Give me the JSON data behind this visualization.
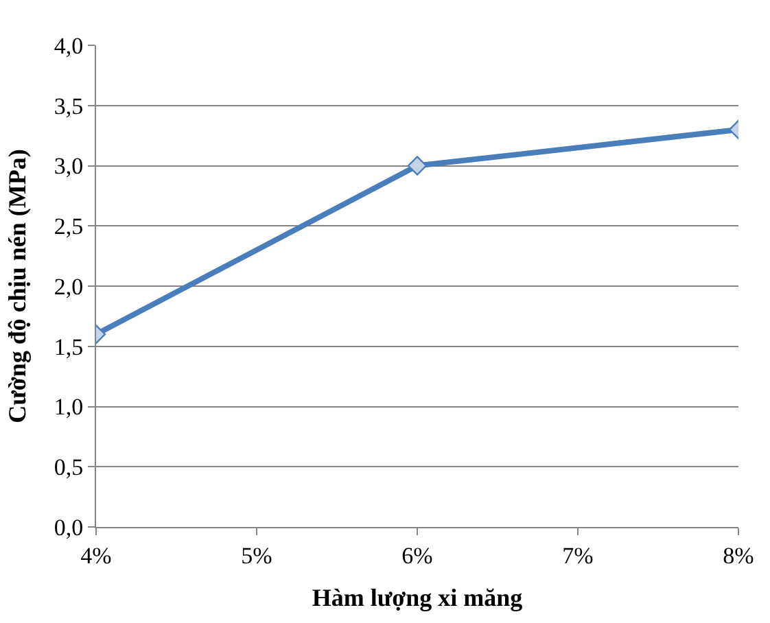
{
  "chart_data": {
    "type": "line",
    "xlabel": "Hàm lượng xi măng",
    "ylabel": "Cường độ chịu nén (MPa)",
    "x": [
      4,
      6,
      8
    ],
    "series": [
      {
        "color": "#4a7ebb",
        "values": [
          1.6,
          3.0,
          3.3
        ]
      }
    ],
    "xlim": [
      4,
      8
    ],
    "xticks": [
      {
        "value": 4,
        "label": "4%"
      },
      {
        "value": 5,
        "label": "5%"
      },
      {
        "value": 6,
        "label": "6%"
      },
      {
        "value": 7,
        "label": "7%"
      },
      {
        "value": 8,
        "label": "8%"
      }
    ],
    "ylim": [
      0,
      4
    ],
    "yticks": [
      {
        "value": 0,
        "label": "0,0"
      },
      {
        "value": 0.5,
        "label": "0,5"
      },
      {
        "value": 1,
        "label": "1,0"
      },
      {
        "value": 1.5,
        "label": "1,5"
      },
      {
        "value": 2,
        "label": "2,0"
      },
      {
        "value": 2.5,
        "label": "2,5"
      },
      {
        "value": 3,
        "label": "3,0"
      },
      {
        "value": 3.5,
        "label": "3,5"
      },
      {
        "value": 4,
        "label": "4,0"
      }
    ],
    "grid": "y",
    "marker": "diamond",
    "line_style": "solid"
  }
}
